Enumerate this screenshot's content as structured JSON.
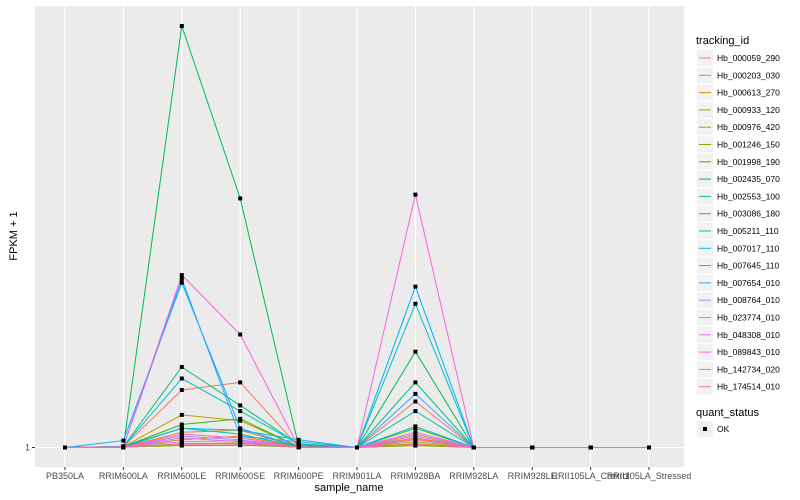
{
  "chart_data": {
    "type": "line",
    "xlabel": "sample_name",
    "ylabel": "FPKM + 1",
    "y_tick_labels": [
      "1"
    ],
    "ylim": [
      0.93,
      12.0
    ],
    "categories": [
      "PB350LA",
      "RRIM600LA",
      "RRIM600LE",
      "RRIM600SE",
      "RRIM600PE",
      "RRIM901LA",
      "RRIM928BA",
      "RRIM928LA",
      "RRIM928LE",
      "RRII105LA_Control",
      "RRII105LA_Stressed"
    ],
    "legend": {
      "tracking_title": "tracking_id",
      "status_title": "quant_status",
      "status_label": "OK"
    },
    "series": [
      {
        "name": "Hb_000059_290",
        "color": "#F8766D",
        "values": [
          1.0,
          1.02,
          2.5,
          2.7,
          1.02,
          1.0,
          2.2,
          1.0,
          1.0,
          1.0,
          1.0
        ]
      },
      {
        "name": "Hb_000203_030",
        "color": "#EA8331",
        "values": [
          1.0,
          1.01,
          1.4,
          1.45,
          1.02,
          1.0,
          1.35,
          1.0,
          1.0,
          1.0,
          1.0
        ]
      },
      {
        "name": "Hb_000613_270",
        "color": "#D89000",
        "values": [
          1.0,
          1.01,
          1.2,
          1.3,
          1.01,
          1.0,
          1.25,
          1.0,
          1.0,
          1.0,
          1.0
        ]
      },
      {
        "name": "Hb_000933_120",
        "color": "#C09B00",
        "values": [
          1.0,
          1.02,
          1.85,
          1.7,
          1.02,
          1.0,
          1.15,
          1.0,
          1.0,
          1.0,
          1.0
        ]
      },
      {
        "name": "Hb_000976_420",
        "color": "#A3A500",
        "values": [
          1.0,
          1.01,
          1.1,
          1.12,
          1.01,
          1.0,
          1.1,
          1.0,
          1.0,
          1.0,
          1.0
        ]
      },
      {
        "name": "Hb_001246_150",
        "color": "#7CAE00",
        "values": [
          1.0,
          1.01,
          1.05,
          1.06,
          1.01,
          1.0,
          1.05,
          1.0,
          1.0,
          1.0,
          1.0
        ]
      },
      {
        "name": "Hb_001998_190",
        "color": "#39B600",
        "values": [
          1.0,
          1.02,
          1.6,
          1.75,
          1.02,
          1.0,
          1.5,
          1.0,
          1.0,
          1.0,
          1.0
        ]
      },
      {
        "name": "Hb_002435_070",
        "color": "#00BB4E",
        "values": [
          1.0,
          1.03,
          12.0,
          7.5,
          1.05,
          1.0,
          3.5,
          1.0,
          1.0,
          1.0,
          1.0
        ]
      },
      {
        "name": "Hb_002553_100",
        "color": "#00BF7D",
        "values": [
          1.0,
          1.02,
          3.1,
          2.1,
          1.08,
          1.0,
          2.7,
          1.0,
          1.0,
          1.0,
          1.0
        ]
      },
      {
        "name": "Hb_003086_180",
        "color": "#00C1A3",
        "values": [
          1.0,
          1.01,
          1.5,
          1.35,
          1.02,
          1.0,
          1.95,
          1.0,
          1.0,
          1.0,
          1.0
        ]
      },
      {
        "name": "Hb_005211_110",
        "color": "#00BFC4",
        "values": [
          1.0,
          1.02,
          2.8,
          1.95,
          1.1,
          1.0,
          4.75,
          1.0,
          1.0,
          1.0,
          1.0
        ]
      },
      {
        "name": "Hb_007017_110",
        "color": "#00BAE0",
        "values": [
          1.0,
          1.03,
          1.5,
          1.45,
          1.2,
          1.0,
          1.55,
          1.0,
          1.0,
          1.0,
          1.0
        ]
      },
      {
        "name": "Hb_007645_110",
        "color": "#00B0F6",
        "values": [
          1.0,
          1.18,
          5.3,
          1.5,
          1.02,
          1.0,
          5.2,
          1.0,
          1.0,
          1.0,
          1.0
        ]
      },
      {
        "name": "Hb_007654_010",
        "color": "#35A2FF",
        "values": [
          1.0,
          1.02,
          5.4,
          1.3,
          1.15,
          1.0,
          2.4,
          1.0,
          1.0,
          1.0,
          1.0
        ]
      },
      {
        "name": "Hb_008764_010",
        "color": "#9590FF",
        "values": [
          1.0,
          1.01,
          1.3,
          1.2,
          1.01,
          1.0,
          1.3,
          1.0,
          1.0,
          1.0,
          1.0
        ]
      },
      {
        "name": "Hb_023774_010",
        "color": "#C77CFF",
        "values": [
          1.0,
          1.01,
          1.15,
          1.18,
          1.01,
          1.0,
          1.2,
          1.0,
          1.0,
          1.0,
          1.0
        ]
      },
      {
        "name": "Hb_048308_010",
        "color": "#E76BF3",
        "values": [
          1.0,
          1.01,
          1.25,
          1.15,
          1.01,
          1.0,
          1.4,
          1.0,
          1.0,
          1.0,
          1.0
        ]
      },
      {
        "name": "Hb_089843_010",
        "color": "#FA62DB",
        "values": [
          1.0,
          1.02,
          5.5,
          3.95,
          1.02,
          1.0,
          7.6,
          1.0,
          1.0,
          1.0,
          1.0
        ]
      },
      {
        "name": "Hb_142734_020",
        "color": "#FF62BC",
        "values": [
          1.0,
          1.01,
          1.35,
          1.25,
          1.01,
          1.0,
          1.22,
          1.0,
          1.0,
          1.0,
          1.0
        ]
      },
      {
        "name": "Hb_174514_010",
        "color": "#FF6C91",
        "values": [
          1.0,
          1.01,
          1.08,
          1.1,
          1.01,
          1.0,
          1.08,
          1.0,
          1.0,
          1.0,
          1.0
        ]
      }
    ]
  }
}
